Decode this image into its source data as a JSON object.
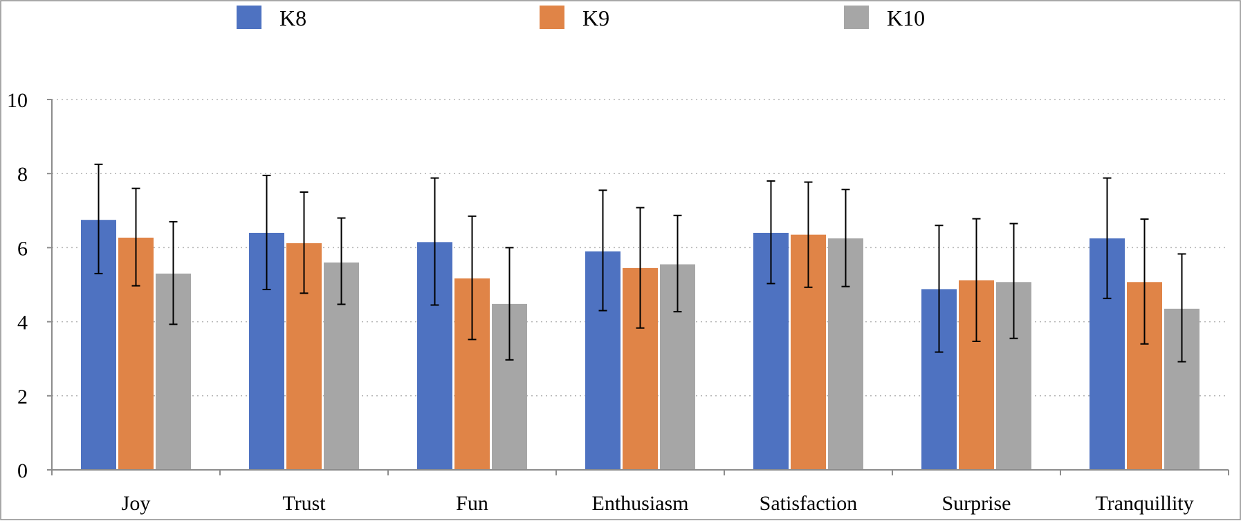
{
  "chart_data": {
    "type": "bar",
    "title": "",
    "xlabel": "",
    "ylabel": "",
    "ylim": [
      0,
      10
    ],
    "yticks": [
      "0",
      "2",
      "4",
      "6",
      "8",
      "10"
    ],
    "grid": true,
    "legend_position": "top",
    "categories": [
      "Joy",
      "Trust",
      "Fun",
      "Enthusiasm",
      "Satisfaction",
      "Surprise",
      "Tranquillity"
    ],
    "series": [
      {
        "name": "K8",
        "color": "#4e72c1",
        "values": [
          6.75,
          6.4,
          6.15,
          5.9,
          6.4,
          4.88,
          6.25
        ],
        "error_low": [
          5.3,
          4.87,
          4.45,
          4.3,
          5.03,
          3.18,
          4.63
        ],
        "error_high": [
          8.25,
          7.95,
          7.88,
          7.55,
          7.8,
          6.6,
          7.88
        ]
      },
      {
        "name": "K9",
        "color": "#e08447",
        "values": [
          6.27,
          6.12,
          5.17,
          5.45,
          6.35,
          5.12,
          5.07
        ],
        "error_low": [
          4.97,
          4.77,
          3.52,
          3.83,
          4.93,
          3.47,
          3.4
        ],
        "error_high": [
          7.6,
          7.5,
          6.85,
          7.08,
          7.77,
          6.78,
          6.77
        ]
      },
      {
        "name": "K10",
        "color": "#a6a6a6",
        "values": [
          5.3,
          5.6,
          4.48,
          5.55,
          6.25,
          5.07,
          4.35
        ],
        "error_low": [
          3.93,
          4.47,
          2.97,
          4.27,
          4.95,
          3.55,
          2.92
        ],
        "error_high": [
          6.7,
          6.8,
          6.0,
          6.87,
          7.57,
          6.65,
          5.83
        ]
      }
    ]
  }
}
